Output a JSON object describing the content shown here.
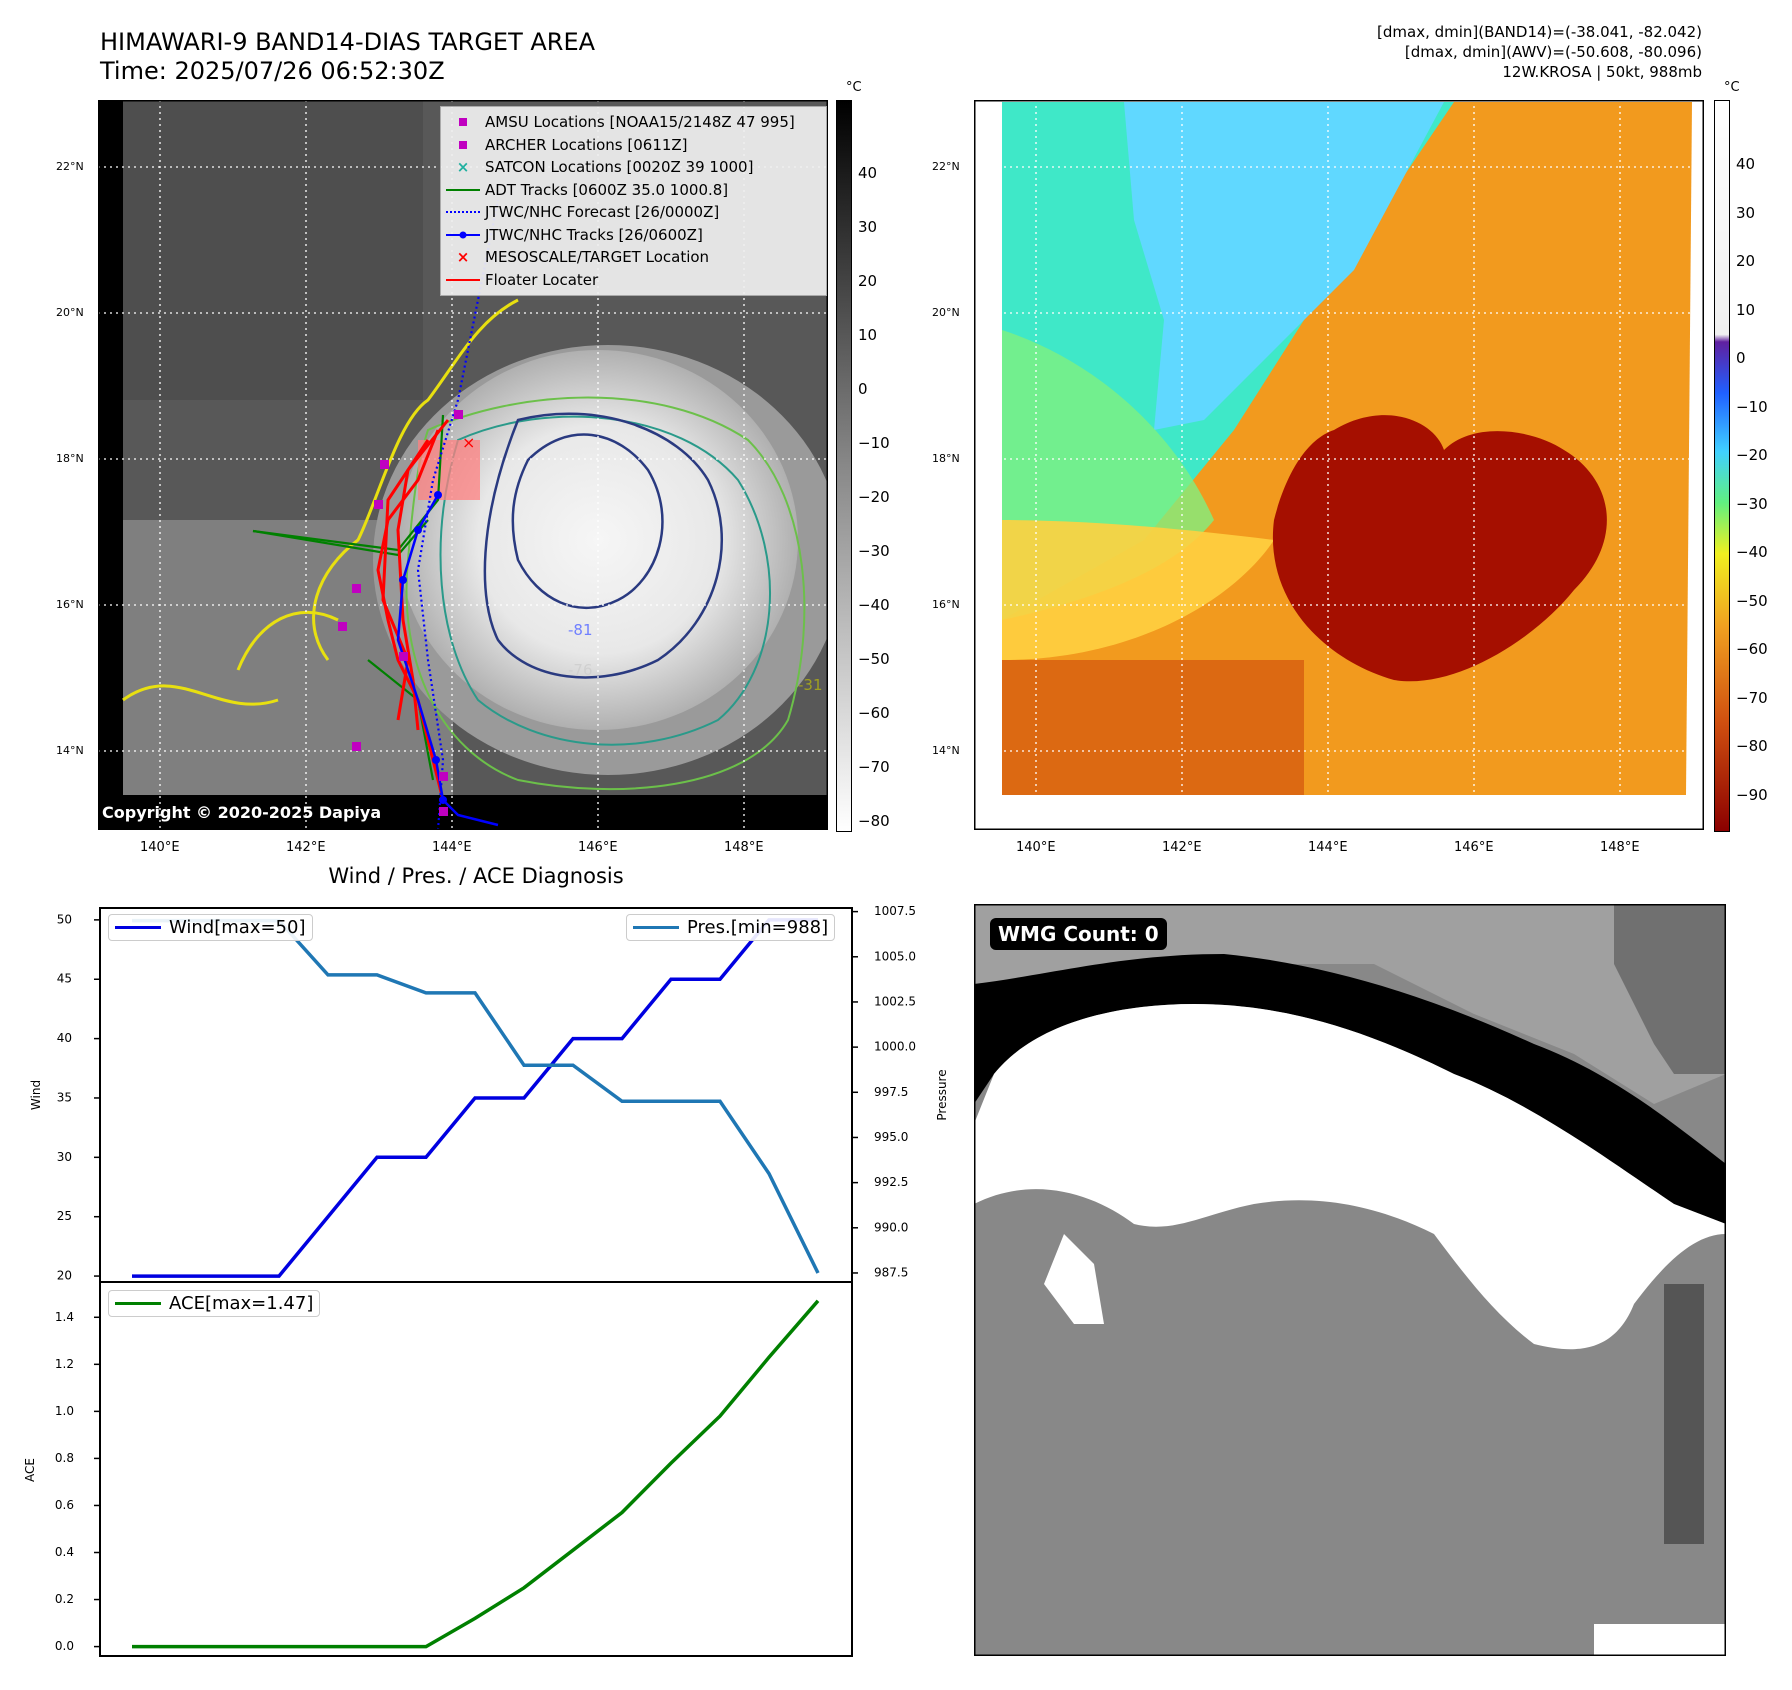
{
  "header": {
    "title_line1": "HIMAWARI-9 BAND14-DIAS TARGET AREA",
    "title_line2": "Time: 2025/07/26 06:52:30Z",
    "right_line1": "[dmax, dmin](BAND14)=(-38.041, -82.042)",
    "right_line2": "[dmax, dmin](AWV)=(-50.608, -80.096)",
    "right_line3": "12W.KROSA | 50kt, 988mb"
  },
  "map_axes": {
    "lat_labels": [
      "22°N",
      "20°N",
      "18°N",
      "16°N",
      "14°N"
    ],
    "lon_labels": [
      "140°E",
      "142°E",
      "144°E",
      "146°E",
      "148°E"
    ],
    "copyright": "Copyright © 2020-2025 Dapiya"
  },
  "colorbar_left": {
    "unit": "°C",
    "ticks": [
      "40",
      "30",
      "20",
      "10",
      "0",
      "−10",
      "−20",
      "−30",
      "−40",
      "−50",
      "−60",
      "−70",
      "−80"
    ]
  },
  "colorbar_right": {
    "unit": "°C",
    "ticks": [
      "40",
      "30",
      "20",
      "10",
      "0",
      "−10",
      "−20",
      "−30",
      "−40",
      "−50",
      "−60",
      "−70",
      "−80",
      "−90"
    ]
  },
  "legend": {
    "items": [
      {
        "label": "AMSU Locations [NOAA15/2148Z 47 995]",
        "symbol": "square",
        "color": "#c000c0"
      },
      {
        "label": "ARCHER Locations [0611Z]",
        "symbol": "square",
        "color": "#c000c0"
      },
      {
        "label": "SATCON Locations [0020Z 39 1000]",
        "symbol": "x",
        "color": "#20b0a0"
      },
      {
        "label": "ADT Tracks [0600Z 35.0 1000.8]",
        "symbol": "line",
        "color": "#008000"
      },
      {
        "label": "JTWC/NHC Forecast [26/0000Z]",
        "symbol": "dotted",
        "color": "#0000ff"
      },
      {
        "label": "JTWC/NHC Tracks [26/0600Z]",
        "symbol": "line-dot",
        "color": "#0000ff"
      },
      {
        "label": "MESOSCALE/TARGET Location",
        "symbol": "x",
        "color": "#ff0000"
      },
      {
        "label": "Floater Locater",
        "symbol": "line",
        "color": "#ff0000"
      }
    ]
  },
  "contour_labels": [
    "-81",
    "-76",
    "-31"
  ],
  "diagnosis": {
    "title": "Wind / Pres. / ACE Diagnosis",
    "wind_legend": "Wind[max=50]",
    "pres_legend": "Pres.[min=988]",
    "ace_legend": "ACE[max=1.47]",
    "wind_axis_label": "Wind",
    "pres_axis_label": "Pressure",
    "ace_axis_label": "ACE"
  },
  "wmg": {
    "label": "WMG Count: 0"
  },
  "colors": {
    "wind": "#0000e0",
    "pressure": "#1f77b4",
    "ace": "#008000"
  },
  "chart_data": [
    {
      "type": "line",
      "x": [
        0,
        1,
        2,
        3,
        4,
        5,
        6,
        7,
        8,
        9,
        10,
        11,
        12,
        13,
        14
      ],
      "series": [
        {
          "name": "Wind[max=50]",
          "values": [
            20,
            20,
            20,
            20,
            25,
            30,
            30,
            35,
            35,
            40,
            40,
            45,
            45,
            50,
            50
          ]
        },
        {
          "name": "Pres.[min=988]",
          "values": [
            1007,
            1007,
            1007,
            1007,
            1004,
            1004,
            1003,
            1003,
            999,
            999,
            997,
            997,
            997,
            993,
            987.5
          ]
        }
      ],
      "ylabel": "Wind",
      "ylim": [
        19.5,
        51
      ],
      "y2label": "Pressure",
      "y2lim": [
        987,
        1007.7
      ],
      "yticks": [
        20,
        25,
        30,
        35,
        40,
        45,
        50
      ],
      "y2ticks": [
        "987.5",
        "990.0",
        "992.5",
        "995.0",
        "997.5",
        "1000.0",
        "1002.5",
        "1005.0",
        "1007.5"
      ],
      "legend": [
        "top-left",
        "top-right"
      ]
    },
    {
      "type": "line",
      "x": [
        0,
        1,
        2,
        3,
        4,
        5,
        6,
        7,
        8,
        9,
        10,
        11,
        12,
        13,
        14
      ],
      "series": [
        {
          "name": "ACE[max=1.47]",
          "values": [
            0,
            0,
            0,
            0,
            0,
            0,
            0,
            0.12,
            0.25,
            0.41,
            0.57,
            0.78,
            0.98,
            1.23,
            1.47
          ]
        }
      ],
      "ylabel": "ACE",
      "ylim": [
        -0.04,
        1.55
      ],
      "yticks": [
        "0.0",
        "0.2",
        "0.4",
        "0.6",
        "0.8",
        "1.0",
        "1.2",
        "1.4"
      ],
      "legend": "top-left"
    }
  ]
}
